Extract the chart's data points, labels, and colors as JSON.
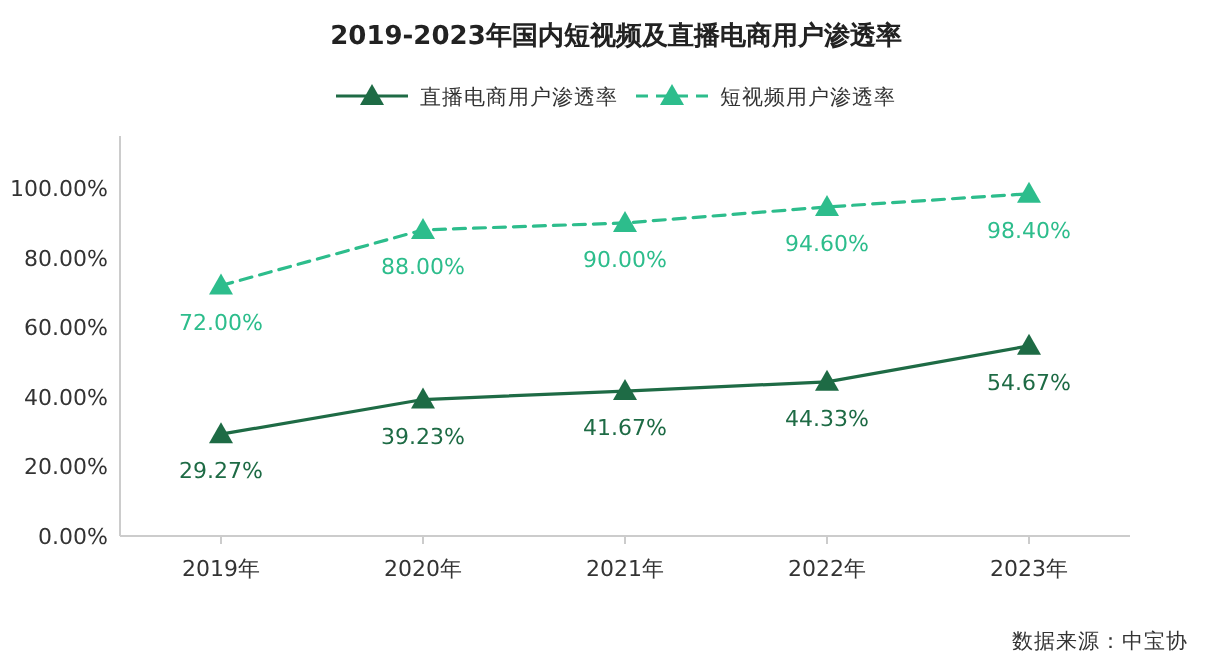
{
  "chart_data": {
    "type": "line",
    "title": "2019-2023年国内短视频及直播电商用户渗透率",
    "categories": [
      "2019年",
      "2020年",
      "2021年",
      "2022年",
      "2023年"
    ],
    "series": [
      {
        "name": "直播电商用户渗透率",
        "color": "#1e6b45",
        "line_style": "solid",
        "values": [
          29.27,
          39.23,
          41.67,
          44.33,
          54.67
        ],
        "value_labels": [
          "29.27%",
          "39.23%",
          "41.67%",
          "44.33%",
          "54.67%"
        ]
      },
      {
        "name": "短视频用户渗透率",
        "color": "#2dbd8c",
        "line_style": "dashed",
        "values": [
          72.0,
          88.0,
          90.0,
          94.6,
          98.4
        ],
        "value_labels": [
          "72.00%",
          "88.00%",
          "90.00%",
          "94.60%",
          "98.40%"
        ]
      }
    ],
    "ylim": [
      0,
      115
    ],
    "yticks": [
      {
        "value": 0,
        "label": "0.00%"
      },
      {
        "value": 20,
        "label": "20.00%"
      },
      {
        "value": 40,
        "label": "40.00%"
      },
      {
        "value": 60,
        "label": "60.00%"
      },
      {
        "value": 80,
        "label": "80.00%"
      },
      {
        "value": 100,
        "label": "100.00%"
      }
    ],
    "marker": "triangle",
    "legend": "top",
    "grid": false,
    "annotations": [
      "数据来源：中宝协"
    ]
  }
}
